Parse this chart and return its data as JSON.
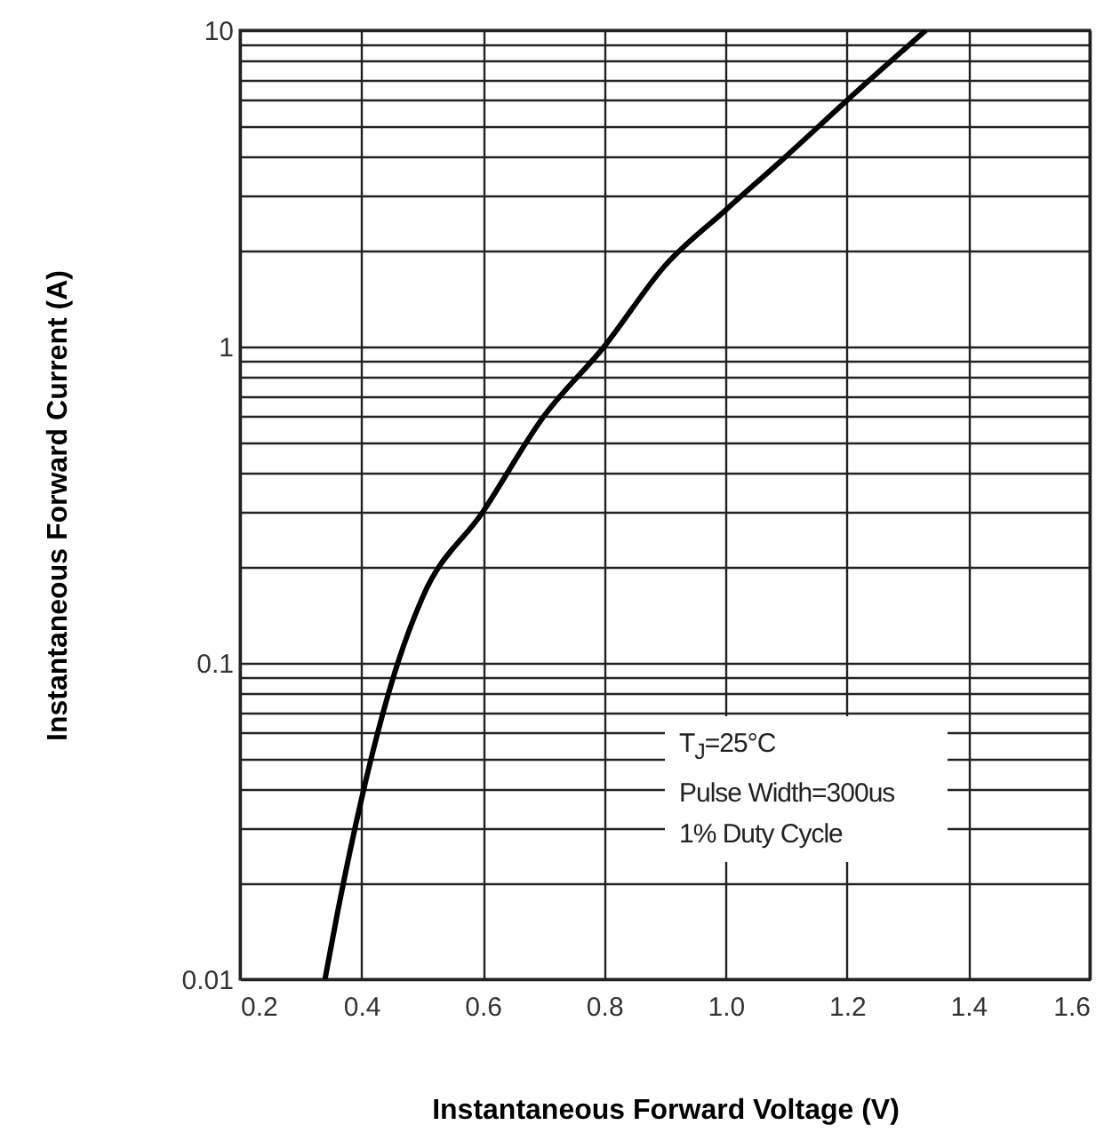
{
  "chart_data": {
    "type": "line",
    "xlabel": "Instantaneous Forward Voltage (V)",
    "ylabel": "Instantaneous Forward Current (A)",
    "x": [
      0.34,
      0.36,
      0.4,
      0.46,
      0.5,
      0.6,
      0.7,
      0.8,
      0.9,
      1.0,
      1.1,
      1.2,
      1.33
    ],
    "series": [
      {
        "color": "#000000",
        "values": [
          0.01,
          0.016,
          0.037,
          0.1,
          0.16,
          0.3,
          0.6,
          1,
          1.8,
          2.7,
          4,
          6,
          10
        ]
      }
    ],
    "log": "y",
    "grid": true,
    "xlim": [
      0.2,
      1.6
    ],
    "xticks": [
      0.2,
      0.4,
      0.6,
      0.8,
      {
        "value": 1,
        "label": "1.0"
      },
      1.2,
      1.4,
      1.6
    ],
    "ylim": [
      0.01,
      10
    ],
    "yticks": [
      0.01,
      {
        "value": 0.02,
        "label": null
      },
      {
        "value": 0.03,
        "label": null
      },
      {
        "value": 0.04,
        "label": null
      },
      {
        "value": 0.05,
        "label": null
      },
      {
        "value": 0.06,
        "label": null
      },
      {
        "value": 0.07,
        "label": null
      },
      {
        "value": 0.08,
        "label": null
      },
      {
        "value": 0.09,
        "label": null
      },
      0.1,
      {
        "value": 0.2,
        "label": null
      },
      {
        "value": 0.3,
        "label": null
      },
      {
        "value": 0.4,
        "label": null
      },
      {
        "value": 0.5,
        "label": null
      },
      {
        "value": 0.6,
        "label": null
      },
      {
        "value": 0.7,
        "label": null
      },
      {
        "value": 0.8,
        "label": null
      },
      {
        "value": 0.9,
        "label": null
      },
      1,
      {
        "value": 2,
        "label": null
      },
      {
        "value": 3,
        "label": null
      },
      {
        "value": 4,
        "label": null
      },
      {
        "value": 5,
        "label": null
      },
      {
        "value": 6,
        "label": null
      },
      {
        "value": 7,
        "label": null
      },
      {
        "value": 8,
        "label": null
      },
      {
        "value": 9,
        "label": null
      },
      10
    ],
    "annotations": [
      "T$_{J}$=25°C",
      "Pulse Width=300us",
      "1% Duty Cycle"
    ]
  }
}
